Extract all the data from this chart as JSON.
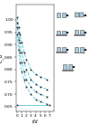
{
  "ylabel": "C_d",
  "xlabel": "t/d",
  "xlim": [
    -0.2,
    8
  ],
  "ylim": [
    0.63,
    1.06
  ],
  "yticks": [
    0.65,
    0.7,
    0.75,
    0.8,
    0.85,
    0.9,
    0.95,
    1.0
  ],
  "ytick_labels": [
    "0.65",
    "0.70",
    "0.75",
    "0.80",
    "0.85",
    "0.90",
    "0.95",
    "1.00"
  ],
  "xticks": [
    0,
    1,
    2,
    3,
    4,
    5,
    6,
    7
  ],
  "xtick_labels": [
    "0",
    "1",
    "2",
    "3",
    "4",
    "5",
    "6",
    "7"
  ],
  "background_color": "#ffffff",
  "line_color": "#70ccdd",
  "marker_color": "#222222",
  "series": [
    {
      "x": [
        0.05,
        0.3,
        0.6,
        1.0,
        1.5,
        2.0,
        3.0,
        4.0,
        5.0,
        6.5
      ],
      "y": [
        1.01,
        0.97,
        0.94,
        0.91,
        0.87,
        0.84,
        0.8,
        0.78,
        0.77,
        0.76
      ],
      "linestyle": "--"
    },
    {
      "x": [
        0.05,
        0.3,
        0.6,
        1.0,
        1.5,
        2.0,
        3.0,
        4.0,
        5.0,
        6.5
      ],
      "y": [
        0.99,
        0.95,
        0.91,
        0.87,
        0.83,
        0.8,
        0.76,
        0.74,
        0.73,
        0.72
      ],
      "linestyle": "--"
    },
    {
      "x": [
        0.05,
        0.3,
        0.6,
        1.0,
        1.5,
        2.0,
        3.0,
        4.0,
        5.0,
        6.5
      ],
      "y": [
        0.97,
        0.92,
        0.87,
        0.83,
        0.79,
        0.76,
        0.73,
        0.71,
        0.7,
        0.69
      ],
      "linestyle": "--"
    },
    {
      "x": [
        0.05,
        0.3,
        0.6,
        1.0,
        1.5,
        2.0,
        3.0,
        4.0,
        5.0,
        6.5
      ],
      "y": [
        0.94,
        0.88,
        0.83,
        0.79,
        0.76,
        0.73,
        0.7,
        0.68,
        0.67,
        0.66
      ],
      "linestyle": "--"
    },
    {
      "x": [
        0.05,
        7.0
      ],
      "y": [
        0.655,
        0.655
      ],
      "linestyle": "-"
    }
  ],
  "fig_width": 1.0,
  "fig_height": 1.37,
  "dpi": 100
}
